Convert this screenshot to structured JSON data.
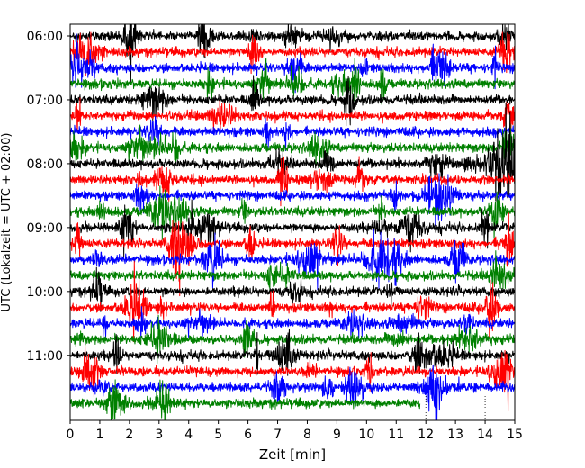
{
  "chart_data": {
    "type": "line",
    "title": "",
    "xlabel": "Zeit  [min]",
    "ylabel": "UTC (Lokalzeit = UTC + 02:00)",
    "xlim": [
      0,
      15
    ],
    "x_ticks": [
      "0",
      "1",
      "2",
      "3",
      "4",
      "5",
      "6",
      "7",
      "8",
      "9",
      "10",
      "11",
      "12",
      "13",
      "14",
      "15"
    ],
    "y_ticks": [
      "06:00",
      "07:00",
      "08:00",
      "09:00",
      "10:00",
      "11:00"
    ],
    "row_interval_min": 15,
    "row_colors": [
      "#000000",
      "#ff0000",
      "#0000ff",
      "#008000"
    ],
    "start_time": "06:00",
    "end_time": "11:45",
    "rows": 24,
    "last_row_end_min": 11.8,
    "grid": false,
    "legend": "none",
    "dotted_verticals_min": [
      12,
      14
    ]
  }
}
